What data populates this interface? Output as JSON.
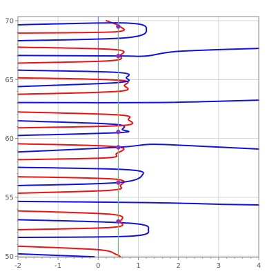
{
  "chart_data": {
    "type": "line",
    "title": "",
    "xlabel": "",
    "ylabel": "",
    "xlim": [
      -2.0,
      4.0
    ],
    "ylim": [
      49.9,
      70.35
    ],
    "x_ticks": [
      -2,
      -1,
      0,
      1,
      2,
      3,
      4
    ],
    "y_ticks": [
      50,
      55,
      60,
      65,
      70
    ],
    "grid": true,
    "vertical_line": {
      "x": 0.5,
      "color": "#33dd33"
    },
    "colors": {
      "red": "#ee1111",
      "blue": "#1111dd",
      "marker": "#8833bb",
      "grid": "#cccccc",
      "axis": "#888888"
    },
    "series": [
      {
        "color": "red",
        "points": [
          [
            -2,
            50.85
          ],
          [
            0,
            50.55
          ],
          [
            0.45,
            50.15
          ],
          [
            0.55,
            49.95
          ]
        ]
      },
      {
        "color": "blue",
        "points": [
          [
            -2,
            50.2
          ],
          [
            -0.1,
            49.95
          ]
        ]
      },
      {
        "color": "blue",
        "points": [
          [
            -2,
            51.6
          ],
          [
            0.8,
            51.7
          ],
          [
            1.25,
            52.25
          ],
          [
            0.8,
            52.8
          ],
          [
            -2,
            53.1
          ]
        ]
      },
      {
        "color": "red",
        "points": [
          [
            -2,
            52.25
          ],
          [
            0.35,
            52.45
          ],
          [
            0.55,
            52.95
          ],
          [
            0.35,
            53.55
          ],
          [
            -2,
            53.85
          ]
        ]
      },
      {
        "color": "blue",
        "points": [
          [
            -2,
            54.65
          ],
          [
            1.2,
            54.55
          ],
          [
            3.2,
            54.4
          ],
          [
            4,
            54.35
          ]
        ]
      },
      {
        "color": "red",
        "points": [
          [
            -2,
            55.35
          ],
          [
            0.3,
            55.6
          ],
          [
            0.55,
            56.0
          ],
          [
            0.4,
            56.55
          ],
          [
            -2,
            56.75
          ]
        ]
      },
      {
        "color": "blue",
        "points": [
          [
            -2,
            56.0
          ],
          [
            0.5,
            56.25
          ],
          [
            1.1,
            56.9
          ],
          [
            0.7,
            57.35
          ],
          [
            -2,
            57.55
          ]
        ]
      },
      {
        "color": "red",
        "points": [
          [
            -2,
            58.2
          ],
          [
            0.2,
            58.35
          ],
          [
            0.45,
            58.7
          ],
          [
            0.45,
            59.3
          ],
          [
            -2,
            59.55
          ]
        ]
      },
      {
        "color": "blue",
        "points": [
          [
            -2,
            58.85
          ],
          [
            0.5,
            59.25
          ],
          [
            1.3,
            59.5
          ],
          [
            2.2,
            59.4
          ],
          [
            4,
            59.1
          ]
        ]
      },
      {
        "color": "blue",
        "points": [
          [
            -2,
            60.25
          ],
          [
            0.55,
            60.5
          ],
          [
            0.6,
            60.75
          ],
          [
            0.4,
            61.2
          ],
          [
            -2,
            61.5
          ]
        ]
      },
      {
        "color": "red",
        "points": [
          [
            -2,
            60.9
          ],
          [
            0.6,
            61.1
          ],
          [
            0.75,
            61.6
          ],
          [
            0.5,
            62.0
          ],
          [
            -2,
            62.25
          ]
        ]
      },
      {
        "color": "blue",
        "points": [
          [
            -2,
            63.05
          ],
          [
            1.5,
            63.05
          ],
          [
            4,
            63.25
          ]
        ]
      },
      {
        "color": "red",
        "points": [
          [
            -2,
            63.75
          ],
          [
            0.5,
            64.0
          ],
          [
            0.65,
            64.5
          ],
          [
            0.5,
            64.95
          ],
          [
            -2,
            65.15
          ]
        ]
      },
      {
        "color": "blue",
        "points": [
          [
            -2,
            64.4
          ],
          [
            0.5,
            64.75
          ],
          [
            0.7,
            65.15
          ],
          [
            0.5,
            65.6
          ],
          [
            -2,
            65.8
          ]
        ]
      },
      {
        "color": "red",
        "points": [
          [
            -2,
            66.4
          ],
          [
            0.3,
            66.6
          ],
          [
            0.55,
            67.05
          ],
          [
            0.4,
            67.55
          ],
          [
            -2,
            67.75
          ]
        ]
      },
      {
        "color": "blue",
        "points": [
          [
            -2,
            67.05
          ],
          [
            0.55,
            67.0
          ],
          [
            1.2,
            67.0
          ],
          [
            2.0,
            67.4
          ],
          [
            4,
            67.65
          ]
        ]
      },
      {
        "color": "red",
        "points": [
          [
            -2,
            68.95
          ],
          [
            0.4,
            69.05
          ],
          [
            0.55,
            69.5
          ],
          [
            0.2,
            70.0
          ]
        ]
      },
      {
        "color": "blue",
        "points": [
          [
            -2,
            69.65
          ],
          [
            0.7,
            69.8
          ],
          [
            1.2,
            69.25
          ],
          [
            0.7,
            68.55
          ],
          [
            -2,
            68.3
          ]
        ]
      }
    ],
    "markers": [
      {
        "x": 0.5,
        "y": 52.95
      },
      {
        "x": 0.5,
        "y": 56.25
      },
      {
        "x": 0.5,
        "y": 59.25
      },
      {
        "x": 0.5,
        "y": 60.55
      },
      {
        "x": 0.5,
        "y": 67.0
      },
      {
        "x": 0.5,
        "y": 69.5
      }
    ]
  }
}
